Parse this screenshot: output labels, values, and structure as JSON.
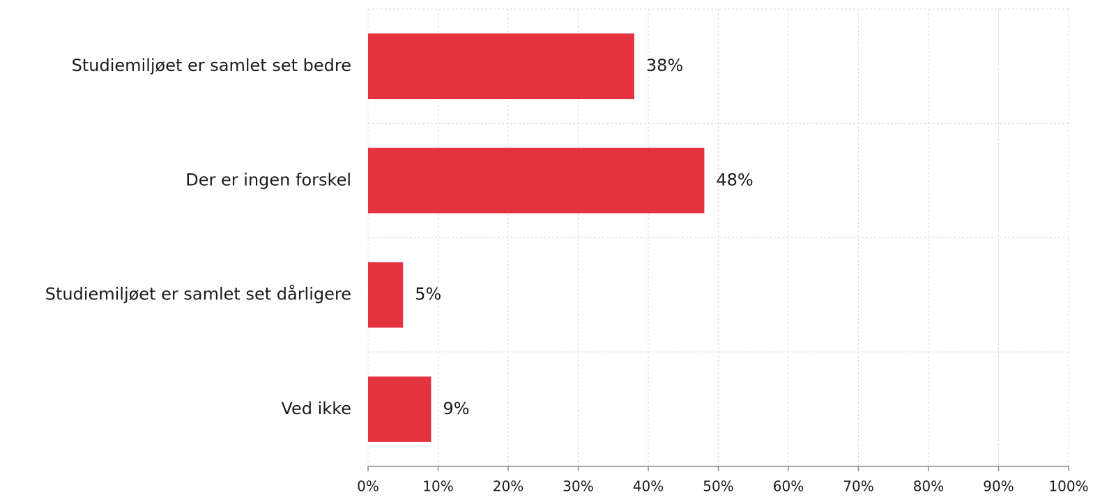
{
  "chart_data": {
    "type": "bar",
    "orientation": "horizontal",
    "categories": [
      "Studiemiljøet er samlet set bedre",
      "Der er ingen forskel",
      "Studiemiljøet er samlet set dårligere",
      "Ved ikke"
    ],
    "values": [
      38,
      48,
      5,
      9
    ],
    "value_labels": [
      "38%",
      "48%",
      "5%",
      "9%"
    ],
    "title": "",
    "xlabel": "",
    "ylabel": "",
    "xlim": [
      0,
      100
    ],
    "x_ticks": [
      0,
      10,
      20,
      30,
      40,
      50,
      60,
      70,
      80,
      90,
      100
    ],
    "x_tick_labels": [
      "0%",
      "10%",
      "20%",
      "30%",
      "40%",
      "50%",
      "60%",
      "70%",
      "80%",
      "90%",
      "100%"
    ],
    "grid": true,
    "legend": "none",
    "bar_color": "#e3333f",
    "grid_color": "#d9d9d9",
    "axis_color": "#8c8c8c"
  }
}
